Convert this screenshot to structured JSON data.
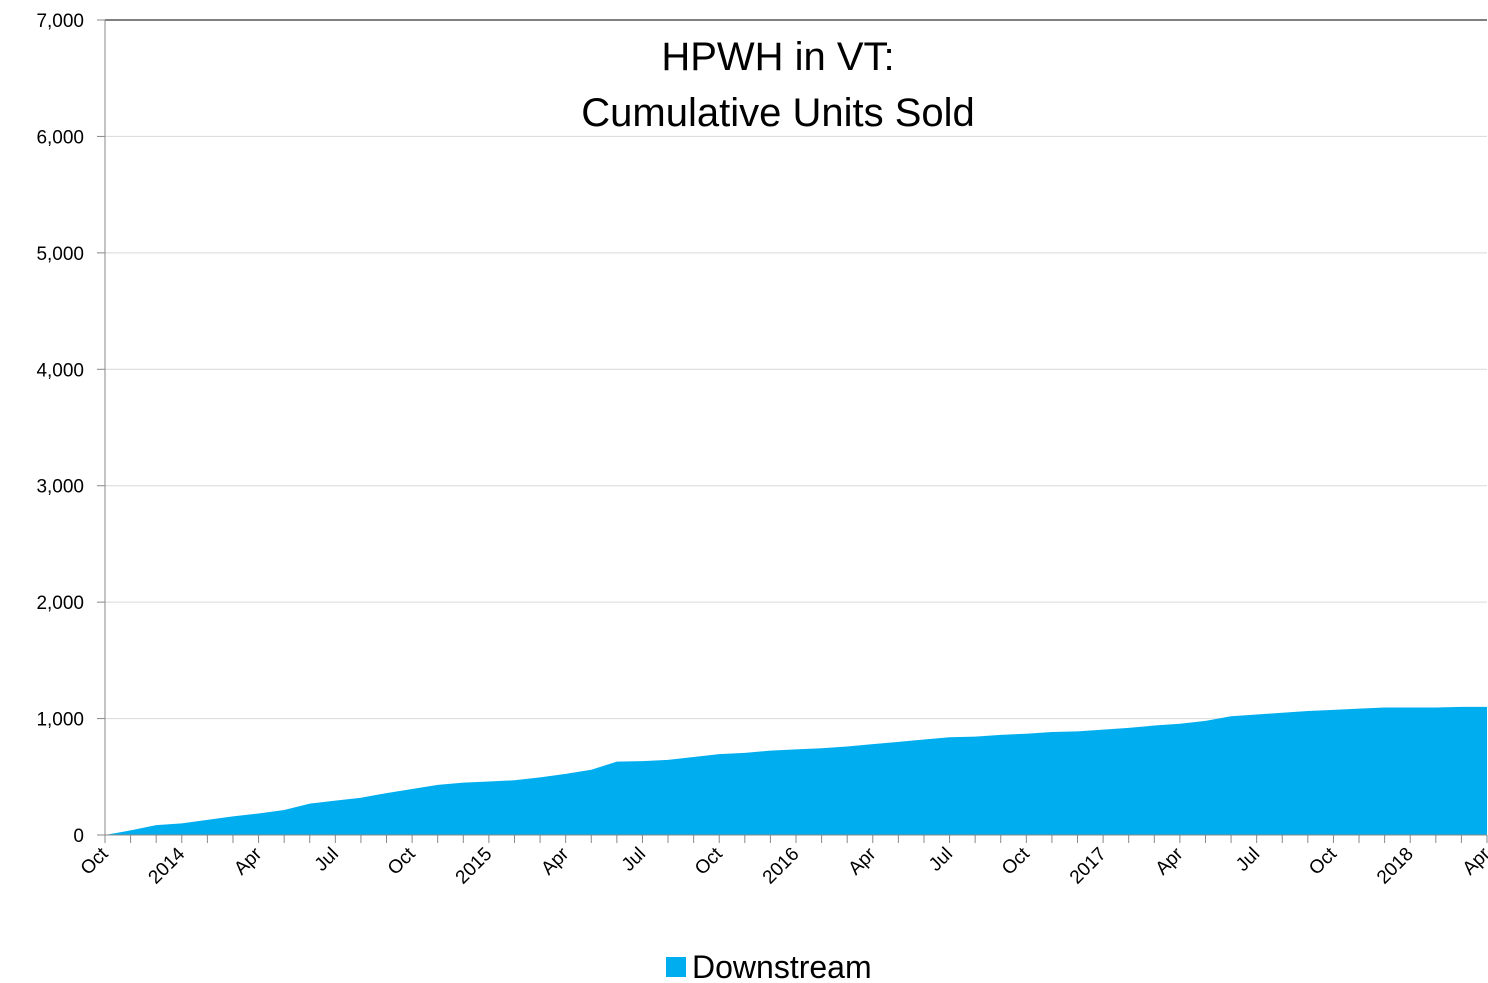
{
  "chart_data": {
    "type": "area",
    "title": [
      "HPWH in VT:",
      "Cumulative Units Sold"
    ],
    "categories": [
      "Oct",
      null,
      null,
      "2014",
      null,
      null,
      "Apr",
      null,
      null,
      "Jul",
      null,
      null,
      "Oct",
      null,
      null,
      "2015",
      null,
      null,
      "Apr",
      null,
      null,
      "Jul",
      null,
      null,
      "Oct",
      null,
      null,
      "2016",
      null,
      null,
      "Apr",
      null,
      null,
      "Jul",
      null,
      null,
      "Oct",
      null,
      null,
      "2017",
      null,
      null,
      "Apr",
      null,
      null,
      "Jul",
      null,
      null,
      "Oct",
      null,
      null,
      "2018",
      null,
      null,
      "Apr"
    ],
    "series": [
      {
        "name": "Downstream",
        "color": "#00aeef",
        "values": [
          0,
          40,
          85,
          100,
          130,
          160,
          185,
          215,
          270,
          295,
          320,
          360,
          395,
          430,
          450,
          460,
          470,
          495,
          525,
          560,
          630,
          635,
          645,
          670,
          695,
          705,
          725,
          735,
          745,
          760,
          780,
          800,
          820,
          840,
          845,
          860,
          870,
          885,
          890,
          905,
          920,
          940,
          955,
          980,
          1020,
          1035,
          1050,
          1065,
          1075,
          1085,
          1095,
          1095,
          1095,
          1100,
          1100
        ]
      }
    ],
    "ylim": [
      0,
      7000
    ],
    "yticks": [
      0,
      {
        "value": 1000,
        "label": "1,000"
      },
      {
        "value": 2000,
        "label": "2,000"
      },
      {
        "value": 3000,
        "label": "3,000"
      },
      {
        "value": 4000,
        "label": "4,000"
      },
      {
        "value": 5000,
        "label": "5,000"
      },
      {
        "value": 6000,
        "label": "6,000"
      },
      {
        "value": 7000,
        "label": "7,000"
      }
    ],
    "grid": true,
    "legend": "bottom"
  }
}
